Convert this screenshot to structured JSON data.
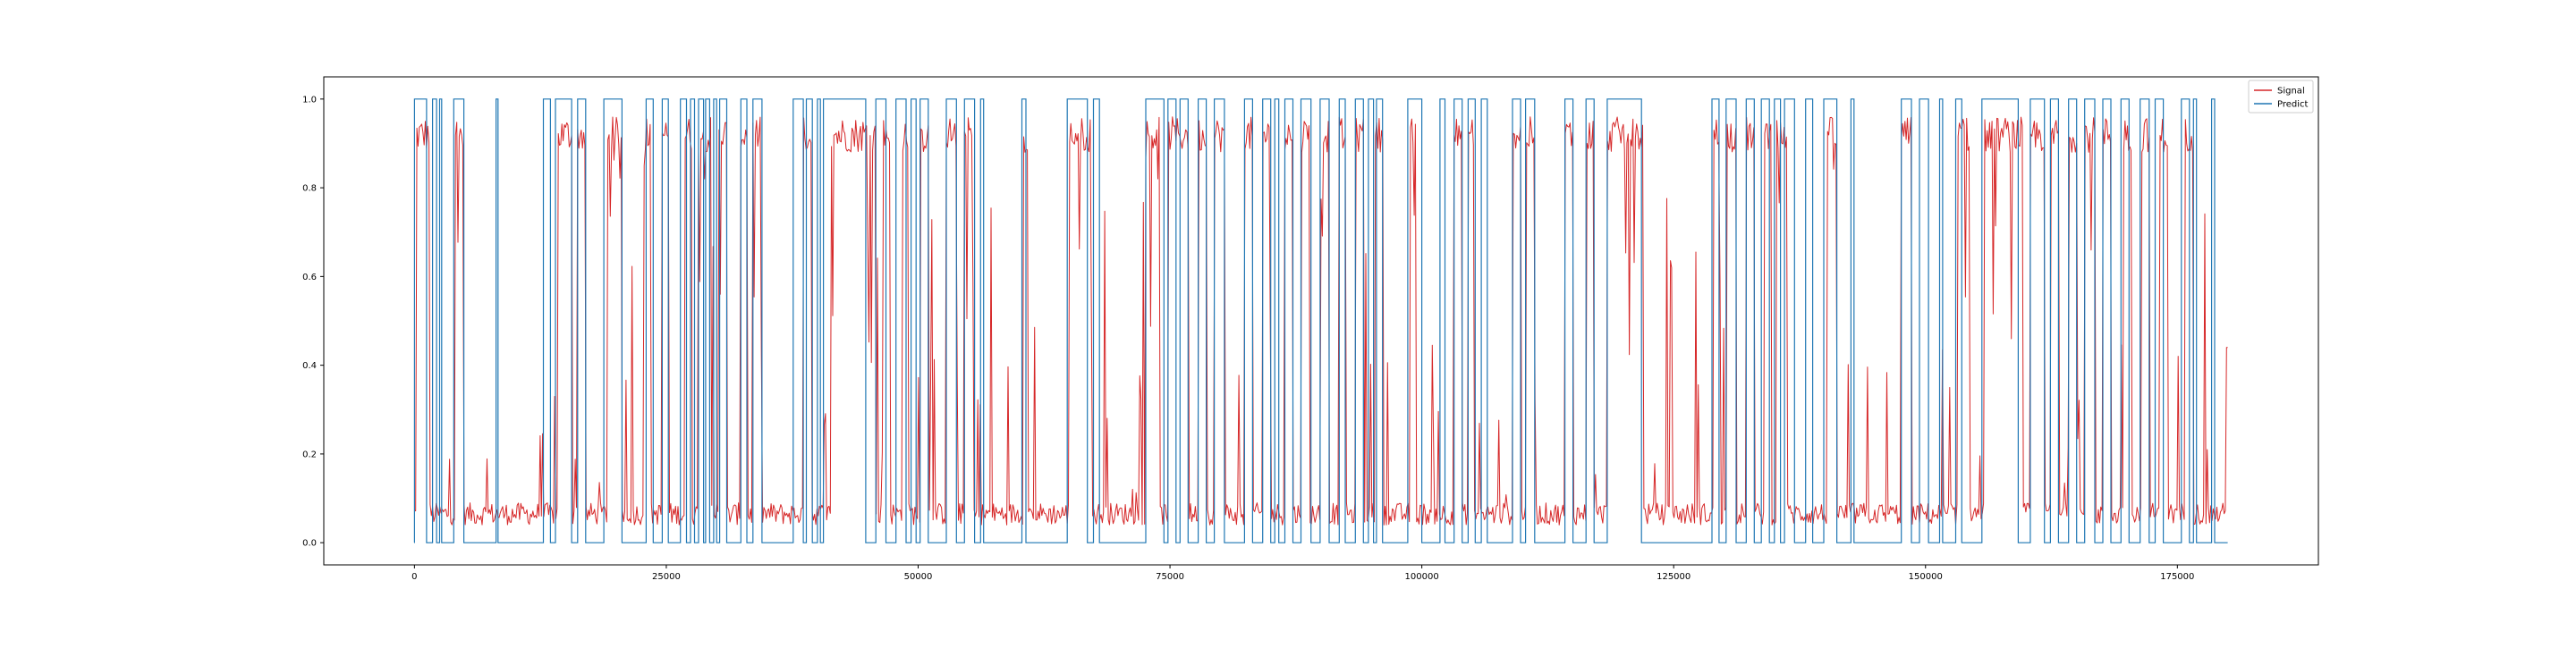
{
  "chart_data": {
    "type": "line",
    "title": "",
    "xlabel": "",
    "ylabel": "",
    "xlim": [
      -9000,
      189000
    ],
    "ylim": [
      -0.05,
      1.05
    ],
    "x_ticks": [
      0,
      25000,
      50000,
      75000,
      100000,
      125000,
      150000,
      175000
    ],
    "x_tick_labels": [
      "0",
      "25000",
      "50000",
      "75000",
      "100000",
      "125000",
      "150000",
      "175000"
    ],
    "y_ticks": [
      0.0,
      0.2,
      0.4,
      0.6,
      0.8,
      1.0
    ],
    "y_tick_labels": [
      "0.0",
      "0.2",
      "0.4",
      "0.6",
      "0.8",
      "1.0"
    ],
    "grid": false,
    "legend_position": "top-right",
    "series": [
      {
        "name": "Signal",
        "color": "#d62728",
        "kind": "continuous noisy signal (estimated)",
        "high_intervals": [
          [
            200,
            1500
          ],
          [
            4000,
            4900
          ],
          [
            14200,
            15600
          ],
          [
            16200,
            17000
          ],
          [
            19200,
            20600
          ],
          [
            22800,
            23400
          ],
          [
            24600,
            25200
          ],
          [
            26800,
            27500
          ],
          [
            28200,
            29500
          ],
          [
            30200,
            31000
          ],
          [
            32400,
            33000
          ],
          [
            33600,
            34400
          ],
          [
            38600,
            39400
          ],
          [
            41400,
            45800
          ],
          [
            46500,
            47200
          ],
          [
            48400,
            49000
          ],
          [
            50200,
            51000
          ],
          [
            52800,
            53800
          ],
          [
            54600,
            55400
          ],
          [
            60400,
            60900
          ],
          [
            65000,
            67200
          ],
          [
            72600,
            74000
          ],
          [
            74800,
            76800
          ],
          [
            77800,
            78600
          ],
          [
            79400,
            80400
          ],
          [
            82400,
            83200
          ],
          [
            84200,
            85000
          ],
          [
            86400,
            87200
          ],
          [
            88000,
            88900
          ],
          [
            89900,
            90800
          ],
          [
            91800,
            92400
          ],
          [
            93400,
            94200
          ],
          [
            95400,
            96200
          ],
          [
            98800,
            99400
          ],
          [
            103200,
            104000
          ],
          [
            104600,
            105200
          ],
          [
            109000,
            109800
          ],
          [
            110400,
            111200
          ],
          [
            114200,
            115000
          ],
          [
            116300,
            117100
          ],
          [
            118400,
            122000
          ],
          [
            129000,
            129600
          ],
          [
            130300,
            131200
          ],
          [
            132200,
            133000
          ],
          [
            134000,
            134700
          ],
          [
            135200,
            136200
          ],
          [
            140200,
            141200
          ],
          [
            147600,
            148600
          ],
          [
            153200,
            154400
          ],
          [
            155800,
            159600
          ],
          [
            160400,
            161800
          ],
          [
            162400,
            163200
          ],
          [
            164200,
            165000
          ],
          [
            165800,
            166800
          ],
          [
            167600,
            168400
          ],
          [
            169600,
            170400
          ],
          [
            171400,
            172200
          ],
          [
            173200,
            174000
          ],
          [
            175800,
            176600
          ]
        ],
        "baseline": 0.04,
        "end_value": 0.44
      },
      {
        "name": "Predict",
        "color": "#1f77b4",
        "kind": "binary step 0/1 (estimated)",
        "high_intervals": [
          [
            0,
            1200
          ],
          [
            1800,
            2200
          ],
          [
            2500,
            2700
          ],
          [
            3900,
            4900
          ],
          [
            8100,
            8300
          ],
          [
            12800,
            13500
          ],
          [
            14000,
            15600
          ],
          [
            16200,
            17000
          ],
          [
            18800,
            20600
          ],
          [
            23000,
            23700
          ],
          [
            24600,
            25200
          ],
          [
            26400,
            27000
          ],
          [
            27400,
            27800
          ],
          [
            28200,
            28700
          ],
          [
            28900,
            29300
          ],
          [
            29700,
            30000
          ],
          [
            30300,
            31000
          ],
          [
            32400,
            33000
          ],
          [
            33600,
            34500
          ],
          [
            37600,
            38600
          ],
          [
            38900,
            39500
          ],
          [
            40000,
            40300
          ],
          [
            40600,
            44800
          ],
          [
            45800,
            46800
          ],
          [
            47800,
            48800
          ],
          [
            49300,
            49800
          ],
          [
            50200,
            51000
          ],
          [
            52800,
            53800
          ],
          [
            54600,
            55600
          ],
          [
            56200,
            56500
          ],
          [
            60300,
            60700
          ],
          [
            64800,
            66800
          ],
          [
            67400,
            68000
          ],
          [
            72600,
            74400
          ],
          [
            74800,
            75600
          ],
          [
            76000,
            76800
          ],
          [
            77800,
            78600
          ],
          [
            79400,
            80400
          ],
          [
            82400,
            83200
          ],
          [
            84200,
            85000
          ],
          [
            85400,
            85800
          ],
          [
            86400,
            87200
          ],
          [
            88000,
            89000
          ],
          [
            89900,
            90800
          ],
          [
            91800,
            92400
          ],
          [
            93400,
            94200
          ],
          [
            94700,
            95200
          ],
          [
            95500,
            96100
          ],
          [
            98600,
            100000
          ],
          [
            101800,
            102300
          ],
          [
            103200,
            104000
          ],
          [
            104600,
            105300
          ],
          [
            105900,
            106500
          ],
          [
            109000,
            109800
          ],
          [
            110300,
            111200
          ],
          [
            114200,
            115000
          ],
          [
            116300,
            117100
          ],
          [
            118400,
            121800
          ],
          [
            128800,
            129500
          ],
          [
            130200,
            131200
          ],
          [
            132200,
            133000
          ],
          [
            133700,
            134500
          ],
          [
            135000,
            135600
          ],
          [
            136000,
            137000
          ],
          [
            138100,
            138800
          ],
          [
            139900,
            141200
          ],
          [
            142600,
            142900
          ],
          [
            147600,
            148600
          ],
          [
            149400,
            150300
          ],
          [
            151400,
            151700
          ],
          [
            153000,
            153600
          ],
          [
            155600,
            159200
          ],
          [
            160400,
            161800
          ],
          [
            162400,
            163200
          ],
          [
            164200,
            165000
          ],
          [
            165800,
            166800
          ],
          [
            167600,
            168400
          ],
          [
            169400,
            170200
          ],
          [
            171300,
            172200
          ],
          [
            172800,
            173600
          ],
          [
            175400,
            176200
          ],
          [
            176600,
            176900
          ],
          [
            178400,
            178700
          ]
        ],
        "end": 180000
      }
    ]
  }
}
